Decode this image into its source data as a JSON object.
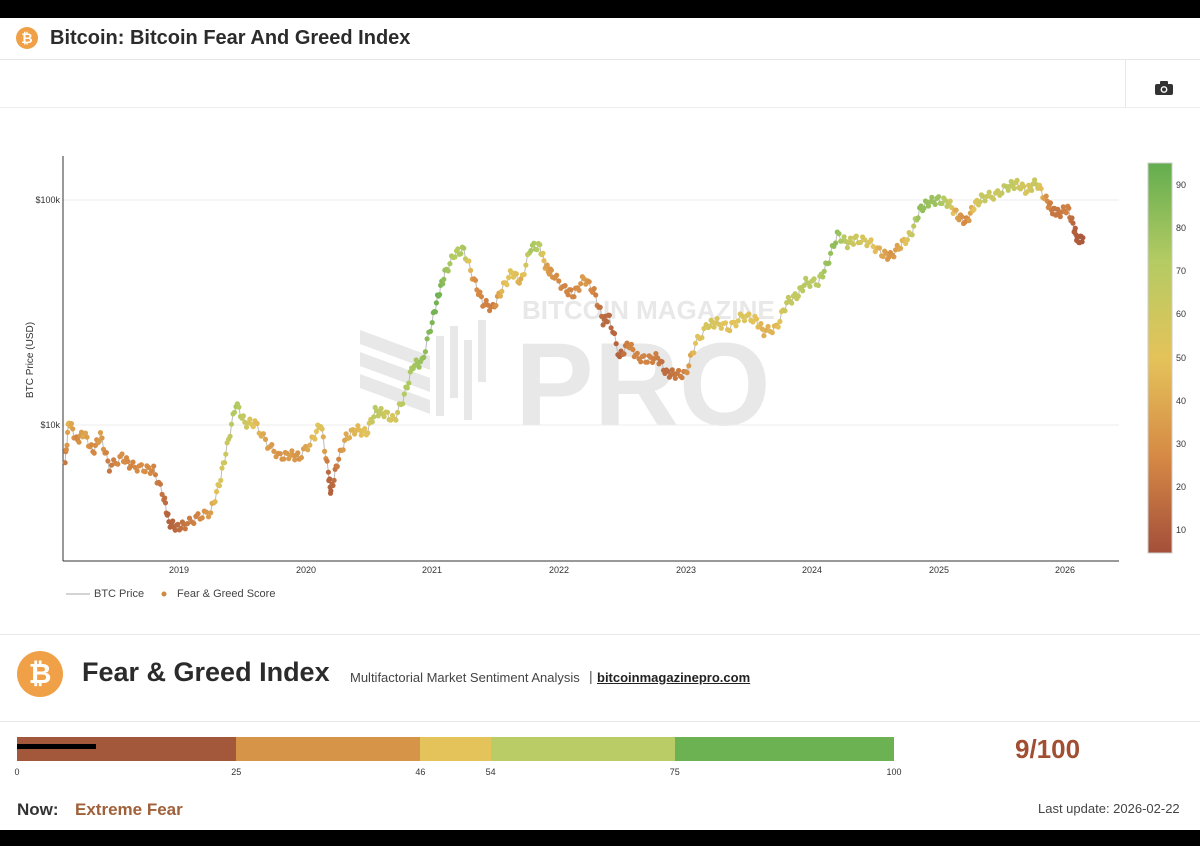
{
  "header": {
    "icon": "bitcoin-icon",
    "title": "Bitcoin: Bitcoin Fear And Greed Index"
  },
  "toolbar": {
    "camera_icon": "camera-icon"
  },
  "watermark": {
    "top": "BITCOIN MAGAZINE",
    "main": "PRO"
  },
  "chart_data": {
    "type": "scatter",
    "title": "Bitcoin Fear And Greed Index",
    "ylabel": "BTC Price (USD)",
    "xlabel": "",
    "yscale": "log",
    "y_tick_labels": [
      {
        "value": 10000,
        "label": "$10k"
      },
      {
        "value": 100000,
        "label": "$100k"
      }
    ],
    "x_tick_labels": [
      "2019",
      "2020",
      "2021",
      "2022",
      "2023",
      "2024",
      "2025",
      "2026"
    ],
    "xlim": [
      2018.09,
      2026.43
    ],
    "ylim": [
      2500,
      160000
    ],
    "colorbar": {
      "range": [
        5,
        95
      ],
      "ticks": [
        "10",
        "20",
        "30",
        "40",
        "50",
        "60",
        "70",
        "80",
        "90"
      ]
    },
    "legend": [
      "BTC Price",
      "Fear & Greed Score"
    ],
    "series": [
      {
        "name": "BTC Price / Fear & Greed Score",
        "points": [
          [
            2018.1,
            6800,
            20
          ],
          [
            2018.13,
            10500,
            45
          ],
          [
            2018.19,
            8500,
            25
          ],
          [
            2018.25,
            9200,
            40
          ],
          [
            2018.32,
            7600,
            25
          ],
          [
            2018.38,
            9000,
            35
          ],
          [
            2018.45,
            6500,
            20
          ],
          [
            2018.55,
            7200,
            30
          ],
          [
            2018.62,
            6600,
            25
          ],
          [
            2018.72,
            6400,
            30
          ],
          [
            2018.8,
            6300,
            25
          ],
          [
            2018.88,
            4800,
            18
          ],
          [
            2018.92,
            3700,
            12
          ],
          [
            2018.98,
            3500,
            15
          ],
          [
            2019.05,
            3600,
            20
          ],
          [
            2019.15,
            3900,
            25
          ],
          [
            2019.25,
            4100,
            35
          ],
          [
            2019.32,
            5500,
            55
          ],
          [
            2019.38,
            8000,
            62
          ],
          [
            2019.45,
            12500,
            75
          ],
          [
            2019.52,
            10200,
            62
          ],
          [
            2019.6,
            10200,
            48
          ],
          [
            2019.7,
            8200,
            35
          ],
          [
            2019.8,
            7200,
            30
          ],
          [
            2019.88,
            7400,
            35
          ],
          [
            2019.95,
            7200,
            30
          ],
          [
            2020.05,
            8500,
            45
          ],
          [
            2020.12,
            10200,
            55
          ],
          [
            2020.18,
            6100,
            15
          ],
          [
            2020.2,
            5000,
            12
          ],
          [
            2020.25,
            6800,
            22
          ],
          [
            2020.32,
            8800,
            40
          ],
          [
            2020.4,
            9600,
            45
          ],
          [
            2020.48,
            9200,
            50
          ],
          [
            2020.55,
            11500,
            70
          ],
          [
            2020.62,
            11300,
            62
          ],
          [
            2020.7,
            10500,
            55
          ],
          [
            2020.78,
            13500,
            72
          ],
          [
            2020.85,
            18500,
            75
          ],
          [
            2020.92,
            19000,
            80
          ],
          [
            2021.0,
            29000,
            88
          ],
          [
            2021.05,
            38000,
            92
          ],
          [
            2021.1,
            47000,
            80
          ],
          [
            2021.18,
            58000,
            70
          ],
          [
            2021.25,
            60000,
            75
          ],
          [
            2021.33,
            44000,
            30
          ],
          [
            2021.4,
            35000,
            25
          ],
          [
            2021.48,
            33000,
            22
          ],
          [
            2021.55,
            40000,
            45
          ],
          [
            2021.63,
            48000,
            55
          ],
          [
            2021.7,
            43000,
            40
          ],
          [
            2021.78,
            62000,
            75
          ],
          [
            2021.85,
            62000,
            70
          ],
          [
            2021.9,
            50000,
            35
          ],
          [
            2021.95,
            47000,
            30
          ],
          [
            2022.05,
            40000,
            25
          ],
          [
            2022.12,
            38000,
            25
          ],
          [
            2022.2,
            45000,
            35
          ],
          [
            2022.28,
            39000,
            25
          ],
          [
            2022.35,
            29000,
            15
          ],
          [
            2022.4,
            30000,
            15
          ],
          [
            2022.48,
            20000,
            12
          ],
          [
            2022.55,
            23000,
            25
          ],
          [
            2022.62,
            20000,
            25
          ],
          [
            2022.7,
            19500,
            25
          ],
          [
            2022.78,
            20000,
            22
          ],
          [
            2022.85,
            17000,
            15
          ],
          [
            2022.92,
            16800,
            20
          ],
          [
            2023.0,
            16800,
            25
          ],
          [
            2023.08,
            23000,
            50
          ],
          [
            2023.18,
            28000,
            58
          ],
          [
            2023.25,
            28500,
            55
          ],
          [
            2023.35,
            27000,
            48
          ],
          [
            2023.45,
            30500,
            55
          ],
          [
            2023.55,
            29500,
            50
          ],
          [
            2023.62,
            26000,
            42
          ],
          [
            2023.72,
            27000,
            45
          ],
          [
            2023.8,
            35000,
            65
          ],
          [
            2023.88,
            37500,
            65
          ],
          [
            2023.95,
            43000,
            70
          ],
          [
            2024.05,
            43000,
            68
          ],
          [
            2024.12,
            52000,
            80
          ],
          [
            2024.2,
            70000,
            82
          ],
          [
            2024.28,
            64000,
            65
          ],
          [
            2024.35,
            67000,
            60
          ],
          [
            2024.45,
            65000,
            55
          ],
          [
            2024.55,
            58000,
            40
          ],
          [
            2024.62,
            56000,
            30
          ],
          [
            2024.7,
            63000,
            40
          ],
          [
            2024.78,
            70000,
            60
          ],
          [
            2024.85,
            90000,
            82
          ],
          [
            2024.92,
            98000,
            80
          ],
          [
            2025.0,
            100000,
            78
          ],
          [
            2025.08,
            97000,
            65
          ],
          [
            2025.15,
            85000,
            35
          ],
          [
            2025.22,
            80000,
            25
          ],
          [
            2025.28,
            94000,
            50
          ],
          [
            2025.35,
            103000,
            65
          ],
          [
            2025.45,
            105000,
            60
          ],
          [
            2025.55,
            115000,
            68
          ],
          [
            2025.62,
            118000,
            62
          ],
          [
            2025.7,
            110000,
            55
          ],
          [
            2025.77,
            120000,
            65
          ],
          [
            2025.85,
            100000,
            30
          ],
          [
            2025.9,
            90000,
            20
          ],
          [
            2025.95,
            87000,
            20
          ],
          [
            2026.02,
            92000,
            25
          ],
          [
            2026.07,
            75000,
            12
          ],
          [
            2026.1,
            66000,
            10
          ],
          [
            2026.14,
            68000,
            9
          ]
        ]
      }
    ]
  },
  "fear_greed": {
    "icon": "bitcoin-icon",
    "title": "Fear & Greed Index",
    "subtitle": "Multifactorial Market Sentiment Analysis",
    "separator": "|",
    "link": "bitcoinmagazinepro.com",
    "score_text": "9/100",
    "score_value": 9,
    "segments": [
      {
        "from": 0,
        "to": 25,
        "color": "#a3573b"
      },
      {
        "from": 25,
        "to": 46,
        "color": "#d69449"
      },
      {
        "from": 46,
        "to": 54,
        "color": "#e4c35a"
      },
      {
        "from": 54,
        "to": 75,
        "color": "#b9cc66"
      },
      {
        "from": 75,
        "to": 100,
        "color": "#6cb252"
      }
    ],
    "tick_labels": [
      "0",
      "25",
      "46",
      "54",
      "75",
      "100"
    ],
    "now_label": "Now:",
    "now_value": "Extreme Fear",
    "last_update": "Last update: 2026-02-22"
  }
}
